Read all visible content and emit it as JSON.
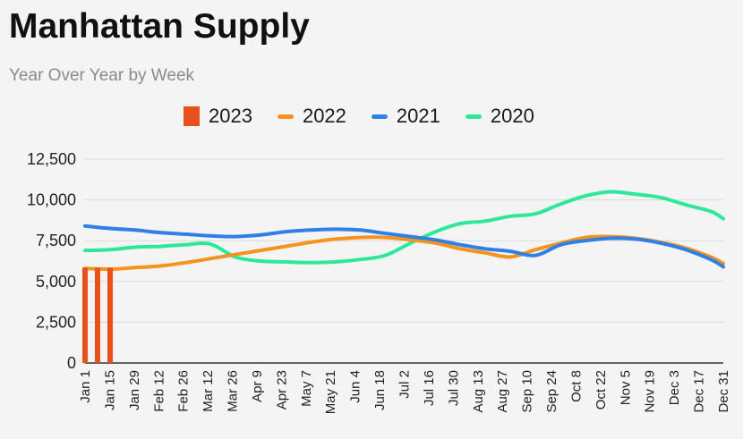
{
  "header": {
    "title": "Manhattan Supply",
    "subtitle": "Year Over Year by Week"
  },
  "colors": {
    "s2023": "#e8501c",
    "s2022": "#f5931e",
    "s2021": "#2f7fe6",
    "s2020": "#2ee89a",
    "grid": "#d9d9d9",
    "axis": "#333333"
  },
  "chart_data": {
    "type": "line",
    "title": "Manhattan Supply",
    "subtitle": "Year Over Year by Week",
    "ylim": [
      0,
      12500
    ],
    "yticks": [
      0,
      2500,
      5000,
      7500,
      10000,
      12500
    ],
    "ytick_labels": [
      "0",
      "2,500",
      "5,000",
      "7,500",
      "10,000",
      "12,500"
    ],
    "xlim": [
      1,
      52
    ],
    "xtick_labels": [
      "Jan 1",
      "Jan 15",
      "Jan 29",
      "Feb 12",
      "Feb 26",
      "Mar 12",
      "Mar 26",
      "Apr 9",
      "Apr 23",
      "May 7",
      "May 21",
      "Jun 4",
      "Jun 18",
      "Jul 2",
      "Jul 16",
      "Jul 30",
      "Aug 13",
      "Aug 27",
      "Sep 10",
      "Sep 24",
      "Oct 8",
      "Oct 22",
      "Nov 5",
      "Nov 19",
      "Dec 3",
      "Dec 17",
      "Dec 31"
    ],
    "grid": true,
    "legend_position": "top-center",
    "series": [
      {
        "name": "2023",
        "kind": "bar",
        "x": [
          1,
          2,
          3
        ],
        "values": [
          5850,
          5850,
          5850
        ]
      },
      {
        "name": "2022",
        "kind": "line",
        "x": [
          1,
          3,
          5,
          7,
          9,
          11,
          13,
          15,
          17,
          19,
          21,
          23,
          25,
          27,
          29,
          31,
          33,
          35,
          37,
          39,
          41,
          43,
          45,
          47,
          49,
          51,
          52
        ],
        "values": [
          5800,
          5750,
          5850,
          5950,
          6150,
          6400,
          6650,
          6900,
          7150,
          7400,
          7600,
          7700,
          7700,
          7550,
          7350,
          7000,
          6750,
          6500,
          6950,
          7350,
          7700,
          7750,
          7650,
          7400,
          7050,
          6500,
          6100
        ]
      },
      {
        "name": "2021",
        "kind": "line",
        "x": [
          1,
          3,
          5,
          7,
          9,
          11,
          13,
          15,
          17,
          19,
          21,
          23,
          25,
          27,
          29,
          31,
          33,
          35,
          37,
          39,
          41,
          43,
          45,
          47,
          49,
          51,
          52
        ],
        "values": [
          8400,
          8250,
          8150,
          8000,
          7900,
          7800,
          7750,
          7850,
          8050,
          8150,
          8200,
          8150,
          7950,
          7750,
          7550,
          7250,
          7000,
          6850,
          6600,
          7250,
          7500,
          7650,
          7600,
          7350,
          6950,
          6350,
          5900
        ]
      },
      {
        "name": "2020",
        "kind": "line",
        "x": [
          1,
          3,
          5,
          7,
          9,
          11,
          13,
          15,
          17,
          19,
          21,
          23,
          25,
          27,
          29,
          31,
          33,
          35,
          37,
          39,
          41,
          43,
          45,
          47,
          49,
          51,
          52
        ],
        "values": [
          6900,
          6950,
          7100,
          7150,
          7250,
          7300,
          6500,
          6250,
          6200,
          6150,
          6200,
          6350,
          6600,
          7350,
          8050,
          8550,
          8700,
          9000,
          9150,
          9750,
          10250,
          10500,
          10350,
          10150,
          9700,
          9300,
          8850
        ]
      }
    ]
  }
}
